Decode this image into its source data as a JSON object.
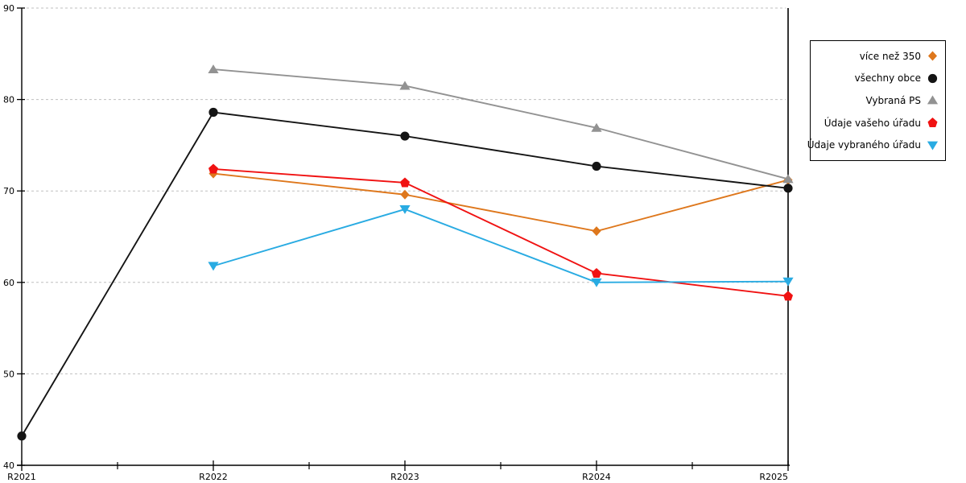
{
  "chart_data": {
    "type": "line",
    "title": "",
    "xlabel": "",
    "ylabel": "",
    "categories": [
      "R2021",
      "R2022",
      "R2023",
      "R2024",
      "R2025"
    ],
    "series": [
      {
        "name": "více než 350",
        "marker": "diamond",
        "color": "#DE771C",
        "values": [
          null,
          71.9,
          69.6,
          65.6,
          71.2
        ]
      },
      {
        "name": "všechny obce",
        "marker": "circle",
        "color": "#141414",
        "values": [
          43.2,
          78.6,
          76.0,
          72.7,
          70.3
        ]
      },
      {
        "name": "Vybraná PS",
        "marker": "triangle-up",
        "color": "#929292",
        "values": [
          null,
          83.3,
          81.5,
          76.9,
          71.3
        ]
      },
      {
        "name": "Údaje vašeho úřadu",
        "marker": "pentagon",
        "color": "#F01212",
        "values": [
          null,
          72.4,
          70.9,
          61.0,
          58.5
        ]
      },
      {
        "name": "Údaje vybraného úřadu",
        "marker": "triangle-down",
        "color": "#29ABE2",
        "values": [
          null,
          61.8,
          68.0,
          60.0,
          60.1
        ]
      }
    ],
    "ylim": [
      40,
      90
    ],
    "yticks": [
      40,
      50,
      60,
      70,
      80,
      90
    ],
    "grid": "horizontal-dashed-at-50-60-70-80-90",
    "legend_position": "outside-top-right"
  },
  "colors": {
    "background": "#FFFFFF",
    "axis": "#000000",
    "gridline": "#BFBFBF",
    "legend_border": "#000000",
    "legend_background": "#FFFFFF",
    "tick_label": "#000000"
  }
}
